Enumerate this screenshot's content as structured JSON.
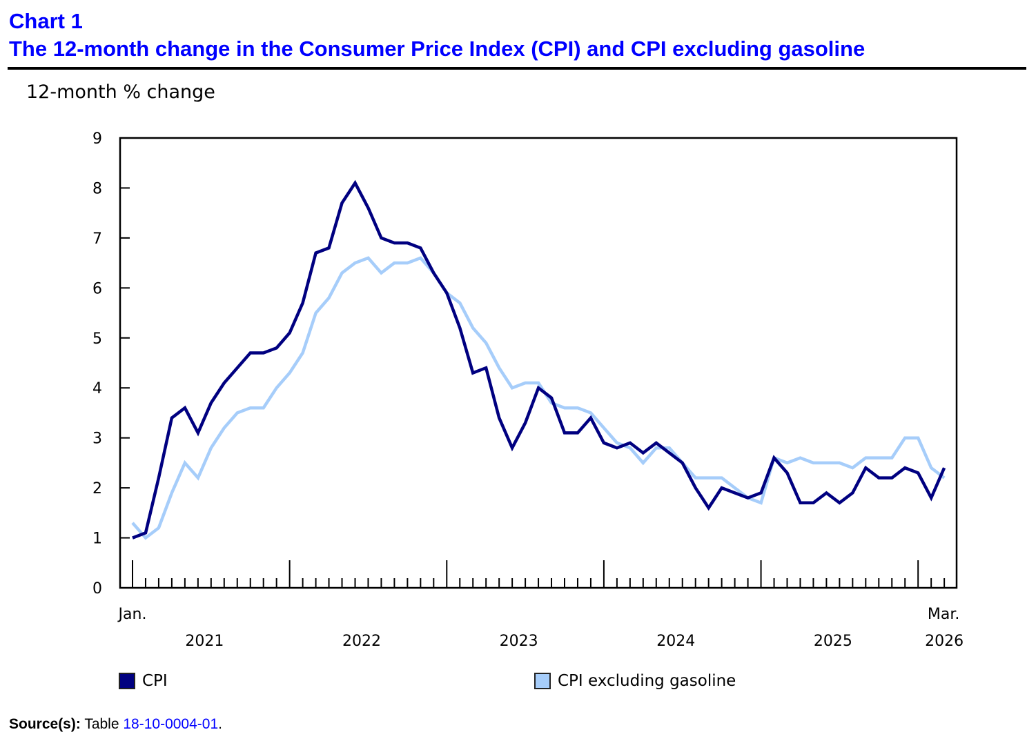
{
  "header": {
    "chart_number": "Chart 1",
    "title": "The 12-month change in the Consumer Price Index (CPI) and CPI excluding gasoline"
  },
  "source": {
    "label": "Source(s):",
    "text": "Table",
    "link_text": "18-10-0004-01",
    "suffix": "."
  },
  "chart_data": {
    "type": "line",
    "title": "The 12-month change in the Consumer Price Index (CPI) and CPI excluding gasoline",
    "ylabel": "12-month % change",
    "xlabel": "",
    "ylim": [
      0,
      9
    ],
    "yticks": [
      0,
      1,
      2,
      3,
      4,
      5,
      6,
      7,
      8,
      9
    ],
    "x_start": "Jan. 2021",
    "x_end": "Mar. 2026",
    "x_tick_labels": {
      "start_month": "Jan.",
      "end_month": "Mar.",
      "years": [
        "2021",
        "2022",
        "2023",
        "2024",
        "2025",
        "2026"
      ]
    },
    "grid": false,
    "legend_position": "bottom",
    "series": [
      {
        "name": "CPI",
        "color": "#000080",
        "values": [
          1.0,
          1.1,
          2.2,
          3.4,
          3.6,
          3.1,
          3.7,
          4.1,
          4.4,
          4.7,
          4.7,
          4.8,
          5.1,
          5.7,
          6.7,
          6.8,
          7.7,
          8.1,
          7.6,
          7.0,
          6.9,
          6.9,
          6.8,
          6.3,
          5.9,
          5.2,
          4.3,
          4.4,
          3.4,
          2.8,
          3.3,
          4.0,
          3.8,
          3.1,
          3.1,
          3.4,
          2.9,
          2.8,
          2.9,
          2.7,
          2.9,
          2.7,
          2.5,
          2.0,
          1.6,
          2.0,
          1.9,
          1.8,
          1.9,
          2.6,
          2.3,
          1.7,
          1.7,
          1.9,
          1.7,
          1.9,
          2.4,
          2.2,
          2.2,
          2.4,
          2.3,
          1.8,
          2.4
        ]
      },
      {
        "name": "CPI excluding gasoline",
        "color": "#a6cdfa",
        "values": [
          1.3,
          1.0,
          1.2,
          1.9,
          2.5,
          2.2,
          2.8,
          3.2,
          3.5,
          3.6,
          3.6,
          4.0,
          4.3,
          4.7,
          5.5,
          5.8,
          6.3,
          6.5,
          6.6,
          6.3,
          6.5,
          6.5,
          6.6,
          6.3,
          5.9,
          5.7,
          5.2,
          4.9,
          4.4,
          4.0,
          4.1,
          4.1,
          3.7,
          3.6,
          3.6,
          3.5,
          3.2,
          2.9,
          2.8,
          2.5,
          2.8,
          2.8,
          2.5,
          2.2,
          2.2,
          2.2,
          2.0,
          1.8,
          1.7,
          2.6,
          2.5,
          2.6,
          2.5,
          2.5,
          2.5,
          2.4,
          2.6,
          2.6,
          2.6,
          3.0,
          3.0,
          2.4,
          2.2
        ]
      }
    ]
  }
}
